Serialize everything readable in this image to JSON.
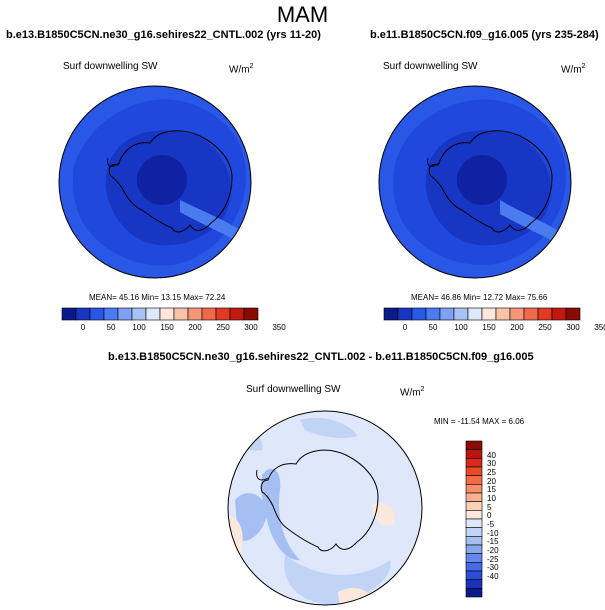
{
  "season_title": "MAM",
  "left_panel": {
    "title": "b.e13.B1850C5CN.ne30_g16.sehires22_CNTL.002 (yrs 11-20)",
    "variable": "Surf downwelling SW",
    "units": "W/m",
    "units_exp": "2",
    "stats": "MEAN=  45.16  Min=  13.15  Max=  72.24"
  },
  "right_panel": {
    "title": "b.e11.B1850C5CN.f09_g16.005 (yrs 235-284)",
    "variable": "Surf downwelling SW",
    "units": "W/m",
    "units_exp": "2",
    "stats": "MEAN=  46.86  Min=  12.72  Max=  75.66"
  },
  "diff_panel": {
    "title": "b.e13.B1850C5CN.ne30_g16.sehires22_CNTL.002 - b.e11.B1850C5CN.f09_g16.005",
    "variable": "Surf downwelling SW",
    "units": "W/m",
    "units_exp": "2",
    "stats": "MIN = -11.54 MAX =   6.06"
  },
  "abs_colorbar": {
    "tick_labels": [
      "0",
      "50",
      "100",
      "150",
      "200",
      "250",
      "300",
      "350"
    ],
    "colors": [
      "#0a1a8a",
      "#1736c4",
      "#2a58e6",
      "#4a7cf0",
      "#7ea1f4",
      "#a9c2f6",
      "#dfe8fb",
      "#fde6da",
      "#f9c3a8",
      "#f5987a",
      "#ee6a4a",
      "#e03a22",
      "#c01a10",
      "#8a0a06"
    ]
  },
  "diff_colorbar": {
    "tick_labels": [
      "40",
      "30",
      "25",
      "20",
      "15",
      "10",
      "5",
      "0",
      "-5",
      "-10",
      "-15",
      "-20",
      "-25",
      "-30",
      "-40"
    ],
    "colors": [
      "#8a0a06",
      "#b8160e",
      "#d82a18",
      "#ea4a2a",
      "#f26c48",
      "#f5906a",
      "#f8b090",
      "#fbd0b8",
      "#fae8dc",
      "#dfe8fb",
      "#c2d4f6",
      "#a6bff2",
      "#86a6ee",
      "#6588ea",
      "#456ae6",
      "#2a4ed8",
      "#1734b8",
      "#0a1a8a"
    ]
  },
  "map_colors": {
    "ocean_abs": "#2a58e6",
    "ice_abs": "#1736c4",
    "pole_abs": "#0e22a2",
    "ring_abs": "#4a7cf0",
    "diff_base": "#dfe8fb",
    "diff_light_blue": "#c2d4f6",
    "diff_mid_blue": "#a6bff2",
    "diff_orange": "#fae8dc"
  }
}
